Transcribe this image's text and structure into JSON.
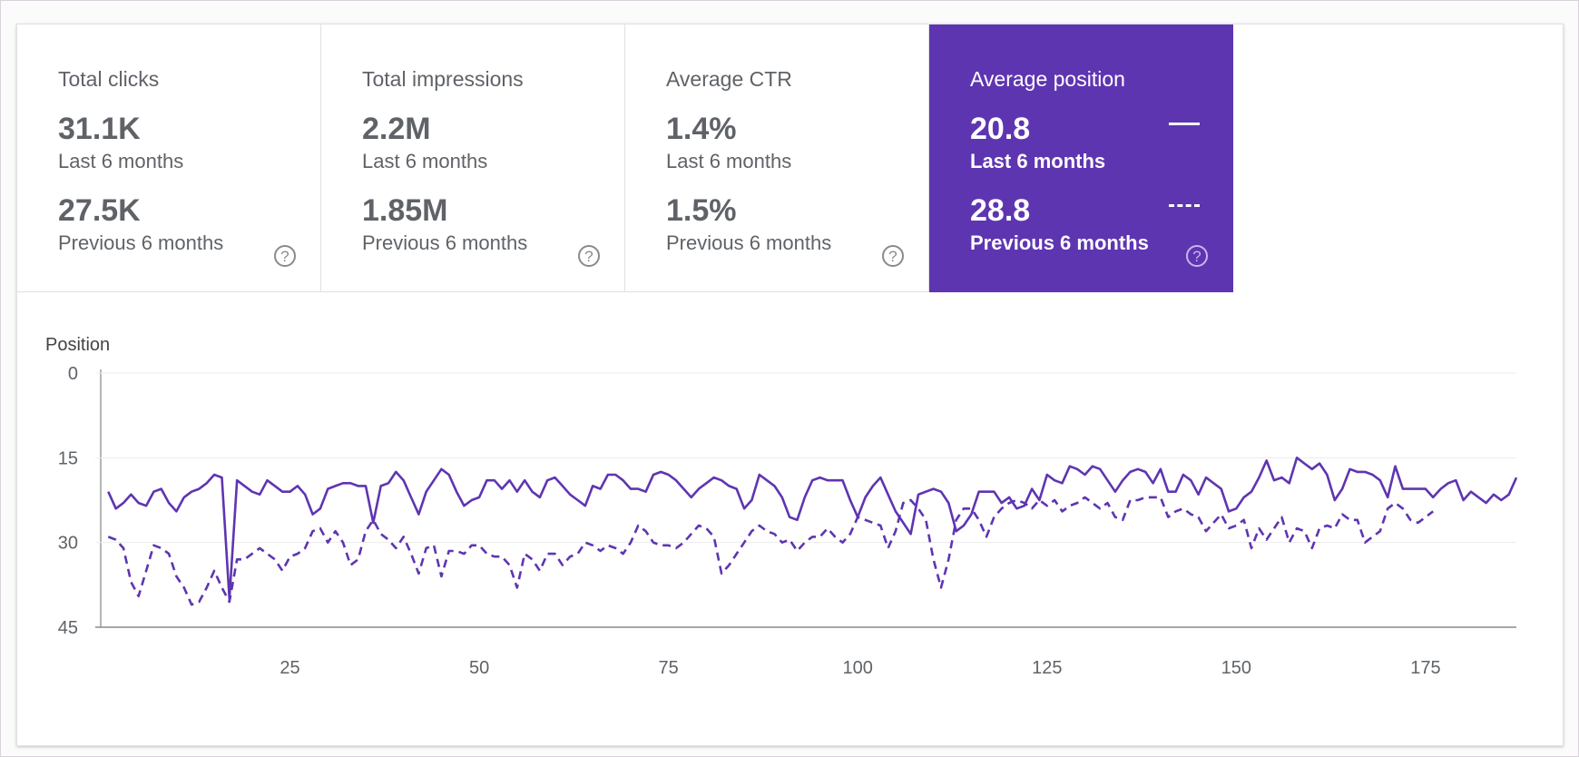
{
  "metrics": [
    {
      "label": "Total clicks",
      "current": "31.1K",
      "current_period": "Last 6 months",
      "previous": "27.5K",
      "previous_period": "Previous 6 months",
      "help": "?"
    },
    {
      "label": "Total impressions",
      "current": "2.2M",
      "current_period": "Last 6 months",
      "previous": "1.85M",
      "previous_period": "Previous 6 months",
      "help": "?"
    },
    {
      "label": "Average CTR",
      "current": "1.4%",
      "current_period": "Last 6 months",
      "previous": "1.5%",
      "previous_period": "Previous 6 months",
      "help": "?"
    },
    {
      "label": "Average position",
      "current": "20.8",
      "current_period": "Last 6 months",
      "previous": "28.8",
      "previous_period": "Previous 6 months",
      "help": "?"
    }
  ],
  "active_metric": "Average position",
  "colors": {
    "accent": "#5e35b1",
    "line": "#5e35b1",
    "text": "#5f6368"
  },
  "chart_data": {
    "type": "line",
    "ylabel": "Position",
    "y_reversed": true,
    "ylim": [
      0,
      45
    ],
    "yticks": [
      0,
      15,
      30,
      45
    ],
    "xlim": [
      0,
      187
    ],
    "xticks": [
      25,
      50,
      75,
      100,
      125,
      150,
      175
    ],
    "grid": true,
    "series": [
      {
        "name": "Last 6 months",
        "style": "solid",
        "values": [
          21,
          24,
          23,
          21.5,
          23,
          23.5,
          21,
          20.5,
          23,
          24.5,
          22,
          21,
          20.5,
          19.5,
          18,
          18.5,
          40,
          19,
          20,
          21,
          21.5,
          19,
          20,
          21,
          21,
          20,
          21.5,
          25,
          24,
          20.5,
          20,
          19.5,
          19.5,
          20,
          20,
          26.5,
          20,
          19.5,
          17.5,
          19,
          22,
          25,
          21,
          19,
          17,
          18,
          21,
          23.5,
          22.5,
          22,
          19,
          19,
          20.5,
          19,
          21,
          19,
          21,
          22,
          19,
          18.5,
          20,
          21.5,
          22.5,
          23.5,
          20,
          20.5,
          18,
          18,
          19,
          20.5,
          20.5,
          21,
          18,
          17.5,
          18,
          19,
          20.5,
          22,
          20.5,
          19.5,
          18.5,
          19,
          20,
          20.5,
          24,
          22.5,
          18,
          19,
          20,
          22,
          25.5,
          26,
          22,
          19,
          18.5,
          19,
          19,
          19,
          22.5,
          25.5,
          22,
          20,
          18.5,
          21.5,
          24.5,
          26.5,
          28.5,
          21.5,
          21,
          20.5,
          21,
          23,
          28,
          27,
          25,
          21,
          21,
          21,
          23,
          22,
          24,
          23.5,
          20.5,
          22.5,
          18,
          19,
          19.5,
          16.5,
          17,
          18,
          16.5,
          17,
          19,
          21,
          19,
          17.5,
          17,
          17.5,
          19.5,
          17,
          21,
          21,
          18,
          19,
          21.5,
          18.5,
          19.5,
          20.5,
          24.5,
          24,
          22,
          21,
          18.5,
          15.5,
          19,
          18.5,
          19.5,
          15,
          16,
          17,
          16,
          18,
          22.5,
          20.5,
          17,
          17.5,
          17.5,
          18,
          19,
          22,
          16.5,
          20.5,
          20.5,
          20.5,
          20.5,
          22,
          20.5,
          19.5,
          19,
          22.5,
          21,
          22,
          23,
          21.5,
          22.5,
          21.5,
          18.5
        ]
      },
      {
        "name": "Previous 6 months",
        "style": "dashed",
        "values": [
          29,
          29.5,
          31,
          37,
          39.5,
          35,
          30.5,
          31,
          32,
          36,
          38,
          41,
          40.5,
          38,
          35,
          38,
          40.5,
          33,
          33,
          32,
          31,
          32,
          33,
          35,
          32.5,
          32,
          31,
          28,
          27.5,
          30,
          28,
          30,
          34,
          33,
          28,
          26,
          28.5,
          29.5,
          31,
          29,
          32,
          35.5,
          31,
          30.5,
          36,
          31.5,
          31.5,
          32,
          30.5,
          30.5,
          32,
          32.5,
          32.5,
          34,
          38,
          32,
          33,
          35,
          32,
          32,
          34,
          32.5,
          32,
          30,
          30.5,
          31.5,
          30.5,
          31,
          32,
          30,
          27,
          28,
          30,
          30.5,
          30.5,
          31,
          30,
          28.5,
          27,
          27.5,
          29,
          35.5,
          34,
          32,
          30,
          28,
          27,
          28,
          28.5,
          30,
          29.5,
          31.5,
          30,
          29,
          29,
          27.5,
          29,
          30,
          28.5,
          25.5,
          26,
          26.5,
          27,
          31,
          28,
          23,
          22.5,
          24,
          26,
          33,
          38,
          33,
          26,
          24,
          24,
          26,
          29,
          25.5,
          24,
          23,
          22.5,
          23,
          24,
          22.5,
          23.5,
          22.5,
          24.5,
          23.5,
          23,
          22,
          23,
          24,
          23,
          25.5,
          26,
          22.5,
          22.5,
          22,
          22,
          22,
          25.5,
          24.5,
          24,
          25,
          25.5,
          28,
          26.5,
          25,
          27.5,
          27,
          26,
          31,
          27.5,
          29.5,
          27.5,
          25.5,
          30,
          27.5,
          28,
          31,
          27.5,
          27,
          27.5,
          25,
          26,
          26,
          30,
          29,
          28,
          24,
          23,
          24,
          26,
          26.5,
          25.5,
          24.5
        ]
      }
    ]
  }
}
